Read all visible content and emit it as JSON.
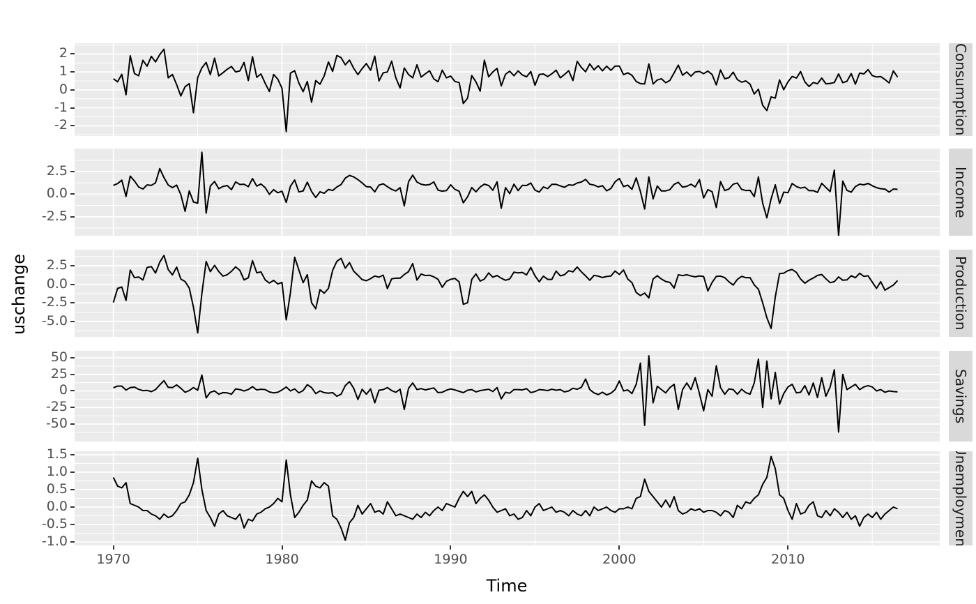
{
  "axis": {
    "x_label": "Time",
    "y_label": "uschange",
    "x_ticks": [
      1970,
      1980,
      1990,
      2000,
      2010
    ],
    "x_tick_labels": [
      "1970",
      "1980",
      "1990",
      "2000",
      "2010"
    ]
  },
  "colors": {
    "panel_background": "#EBEBEB",
    "grid_major": "#FFFFFF",
    "grid_minor": "#FFFFFF",
    "strip_background": "#D9D9D9",
    "strip_text": "#1A1A1A",
    "tick_text": "#4D4D4D",
    "axis_title_text": "#000000",
    "series_line": "#000000",
    "tick_mark": "#333333"
  },
  "chart_data": {
    "type": "line",
    "title": "",
    "xlabel": "Time",
    "ylabel": "uschange",
    "x_start": 1970.0,
    "x_step": 0.25,
    "n_points": 187,
    "xlim": [
      1967.7,
      2019.0
    ],
    "x_major": [
      1970,
      1980,
      1990,
      2000,
      2010
    ],
    "x_minor": [
      1975,
      1985,
      1995,
      2005,
      2015
    ],
    "legend": "none",
    "facets": "rows, free_y, strips on right",
    "panels": [
      {
        "label": "Consumption",
        "ylim": [
          -2.57,
          2.6
        ],
        "yticks": [
          2,
          1,
          0,
          -1,
          -2
        ],
        "ytick_labels": [
          "2",
          "1",
          "0",
          "-1",
          "-2"
        ],
        "yminor": [
          2.5,
          1.5,
          0.5,
          -0.5,
          -1.5,
          -2.5
        ],
        "values": [
          0.62,
          0.45,
          0.87,
          -0.27,
          1.9,
          0.91,
          0.79,
          1.65,
          1.32,
          1.87,
          1.56,
          1.97,
          2.27,
          0.67,
          0.86,
          0.29,
          -0.34,
          0.18,
          0.35,
          -1.27,
          0.69,
          1.23,
          1.53,
          0.85,
          1.77,
          0.78,
          0.96,
          1.15,
          1.3,
          1.0,
          1.06,
          1.53,
          0.52,
          1.85,
          0.7,
          0.89,
          0.37,
          -0.09,
          0.86,
          0.6,
          0.09,
          -2.33,
          0.94,
          1.07,
          0.39,
          -0.1,
          0.47,
          -0.69,
          0.52,
          0.32,
          0.78,
          1.56,
          1.03,
          1.92,
          1.8,
          1.4,
          1.66,
          1.2,
          0.85,
          1.19,
          1.47,
          1.09,
          1.88,
          0.5,
          0.95,
          1.0,
          1.6,
          0.67,
          0.11,
          1.22,
          0.86,
          0.67,
          1.4,
          0.71,
          0.9,
          1.07,
          0.61,
          0.46,
          1.1,
          0.67,
          0.77,
          0.47,
          0.41,
          -0.76,
          -0.46,
          0.8,
          0.45,
          -0.07,
          1.66,
          0.73,
          1.0,
          1.2,
          0.22,
          0.87,
          1.04,
          0.79,
          1.06,
          0.83,
          0.73,
          1.02,
          0.26,
          0.86,
          0.89,
          0.74,
          0.9,
          1.1,
          0.67,
          0.86,
          1.07,
          0.52,
          1.59,
          1.25,
          1.01,
          1.45,
          1.12,
          1.35,
          1.06,
          1.32,
          1.09,
          1.33,
          1.33,
          0.85,
          0.95,
          0.81,
          0.47,
          0.35,
          0.33,
          1.45,
          0.33,
          0.55,
          0.62,
          0.4,
          0.53,
          0.95,
          1.38,
          0.82,
          1.0,
          0.77,
          1.0,
          1.03,
          0.9,
          1.05,
          0.86,
          0.28,
          1.11,
          0.62,
          0.68,
          0.99,
          0.57,
          0.43,
          0.5,
          0.32,
          -0.23,
          0.04,
          -0.86,
          -1.15,
          -0.39,
          -0.46,
          0.56,
          0.01,
          0.45,
          0.75,
          0.66,
          1.02,
          0.45,
          0.19,
          0.41,
          0.34,
          0.66,
          0.34,
          0.36,
          0.41,
          0.89,
          0.4,
          0.48,
          0.91,
          0.32,
          0.94,
          0.89,
          1.13,
          0.8,
          0.72,
          0.74,
          0.58,
          0.39,
          1.06,
          0.71
        ]
      },
      {
        "label": "Income",
        "ylim": [
          -4.6,
          5.04
        ],
        "yticks": [
          2.5,
          0,
          -2.5
        ],
        "ytick_labels": [
          "2.5",
          "0.0",
          "-2.5"
        ],
        "yminor": [
          3.75,
          1.25,
          -1.25,
          -3.75
        ],
        "values": [
          0.97,
          1.17,
          1.55,
          -0.26,
          1.99,
          1.45,
          0.79,
          0.57,
          1.02,
          0.97,
          1.25,
          2.83,
          1.83,
          1.01,
          0.72,
          1.0,
          -0.06,
          -1.9,
          0.36,
          -0.87,
          -1.0,
          4.64,
          -2.1,
          0.9,
          1.4,
          0.6,
          0.85,
          0.95,
          0.5,
          1.35,
          1.07,
          1.1,
          0.82,
          1.72,
          0.89,
          1.12,
          0.72,
          -0.02,
          0.5,
          0.15,
          0.33,
          -0.91,
          0.88,
          1.56,
          0.24,
          0.35,
          1.32,
          0.3,
          -0.37,
          0.26,
          0.1,
          0.52,
          0.4,
          0.79,
          1.06,
          1.77,
          2.07,
          1.9,
          1.61,
          1.24,
          0.83,
          0.79,
          0.25,
          1.0,
          1.15,
          0.82,
          0.53,
          0.35,
          0.72,
          -1.3,
          1.37,
          2.1,
          1.34,
          1.1,
          1.0,
          1.06,
          1.35,
          0.44,
          0.33,
          0.39,
          1.03,
          0.53,
          0.32,
          -0.96,
          -0.3,
          0.73,
          0.26,
          0.79,
          1.11,
          0.96,
          0.43,
          1.36,
          -1.57,
          0.72,
          0.06,
          1.1,
          0.39,
          0.97,
          0.95,
          1.23,
          0.44,
          0.23,
          0.8,
          0.61,
          1.08,
          1.08,
          0.91,
          0.76,
          1.03,
          0.98,
          1.23,
          1.34,
          1.63,
          1.1,
          1.01,
          0.8,
          0.93,
          0.37,
          0.63,
          1.36,
          1.73,
          0.84,
          0.99,
          0.54,
          1.8,
          0.3,
          -1.65,
          1.91,
          -0.53,
          0.9,
          0.35,
          0.36,
          0.5,
          1.08,
          1.31,
          0.77,
          0.87,
          1.1,
          0.8,
          1.61,
          -0.42,
          0.5,
          0.27,
          -1.48,
          1.39,
          0.4,
          0.57,
          1.1,
          1.23,
          0.53,
          0.4,
          0.42,
          -0.27,
          1.9,
          -1.01,
          -2.62,
          -0.51,
          1.03,
          -1.04,
          0.22,
          0.16,
          1.18,
          0.84,
          0.67,
          0.77,
          0.38,
          0.4,
          0.19,
          1.2,
          0.74,
          0.28,
          2.66,
          -4.62,
          1.45,
          0.41,
          0.22,
          0.84,
          1.11,
          1.03,
          1.19,
          0.93,
          0.72,
          0.6,
          0.56,
          0.23,
          0.57,
          0.53
        ]
      },
      {
        "label": "Production",
        "ylim": [
          -7.09,
          4.67
        ],
        "yticks": [
          2.5,
          0,
          -2.5,
          -5
        ],
        "ytick_labels": [
          "2.5",
          "0.0",
          "-2.5",
          "-5.0"
        ],
        "yminor": [
          3.75,
          1.25,
          -1.25,
          -3.75,
          -6.25
        ],
        "values": [
          -2.45,
          -0.55,
          -0.36,
          -2.18,
          1.91,
          0.9,
          0.99,
          0.59,
          2.27,
          2.39,
          1.52,
          3.0,
          3.89,
          1.99,
          1.27,
          2.33,
          0.71,
          0.37,
          -0.51,
          -3.09,
          -6.56,
          -1.22,
          3.08,
          1.71,
          2.55,
          1.73,
          1.1,
          1.29,
          1.75,
          2.36,
          1.87,
          0.6,
          0.89,
          3.19,
          1.56,
          1.68,
          0.6,
          0.17,
          0.53,
          0.05,
          0.25,
          -4.79,
          -1.13,
          3.65,
          1.93,
          0.22,
          1.29,
          -2.47,
          -3.3,
          -0.72,
          -1.2,
          -0.55,
          1.88,
          3.1,
          3.5,
          2.18,
          2.93,
          1.76,
          1.23,
          0.63,
          0.48,
          0.77,
          1.12,
          0.96,
          1.24,
          -0.58,
          0.74,
          0.83,
          0.82,
          1.32,
          1.71,
          2.8,
          0.57,
          1.39,
          1.18,
          1.23,
          1.01,
          0.67,
          -0.4,
          0.41,
          0.67,
          0.79,
          0.33,
          -2.7,
          -2.49,
          0.66,
          1.4,
          0.44,
          0.71,
          1.54,
          0.96,
          1.2,
          0.82,
          0.55,
          0.72,
          1.64,
          1.54,
          1.6,
          1.27,
          2.27,
          1.14,
          0.33,
          1.1,
          0.66,
          0.66,
          1.79,
          1.14,
          1.29,
          1.83,
          1.68,
          2.34,
          1.69,
          1.13,
          0.55,
          1.21,
          1.1,
          0.92,
          1.06,
          1.12,
          1.79,
          1.33,
          1.93,
          0.71,
          0.22,
          -1.1,
          -1.52,
          -1.18,
          -1.84,
          0.72,
          1.16,
          0.71,
          0.38,
          0.26,
          -0.5,
          1.28,
          1.17,
          1.29,
          1.12,
          1.01,
          1.13,
          1.06,
          -0.9,
          0.24,
          1.07,
          1.1,
          0.9,
          0.33,
          -0.1,
          0.66,
          1.08,
          0.9,
          0.9,
          -0.07,
          -0.66,
          -2.5,
          -4.5,
          -5.95,
          -1.7,
          1.45,
          1.5,
          1.85,
          2.0,
          1.6,
          0.71,
          0.15,
          0.55,
          0.85,
          1.2,
          1.32,
          0.75,
          0.22,
          0.35,
          1.0,
          0.55,
          0.6,
          1.16,
          0.89,
          1.49,
          1.08,
          1.15,
          0.3,
          -0.55,
          0.35,
          -0.8,
          -0.45,
          -0.1,
          0.51
        ]
      },
      {
        "label": "Savings",
        "ylim": [
          -76.3,
          60.5
        ],
        "yticks": [
          50,
          25,
          0,
          -25,
          -50
        ],
        "ytick_labels": [
          "50",
          "25",
          "0",
          "-25",
          "-50"
        ],
        "yminor": [
          37.5,
          12.5,
          -12.5,
          -37.5,
          -62.5
        ],
        "values": [
          4.81,
          7.29,
          7.29,
          1.21,
          4.94,
          5.74,
          2.44,
          0.39,
          0.8,
          -1.01,
          1.95,
          9.17,
          15.5,
          5.5,
          5.0,
          9.0,
          4.0,
          -2.0,
          0.5,
          5.0,
          1.0,
          24.0,
          -10.5,
          -2.0,
          0.0,
          -5.0,
          -2.5,
          -3.0,
          -5.0,
          3.0,
          2.0,
          0.0,
          2.0,
          6.5,
          1.5,
          2.5,
          2.0,
          -1.5,
          -3.0,
          -2.0,
          1.5,
          6.0,
          0.0,
          3.0,
          -3.0,
          0.5,
          9.5,
          5.0,
          -4.0,
          0.0,
          -2.5,
          -3.5,
          -2.5,
          -8.0,
          -5.0,
          8.0,
          14.0,
          4.0,
          -13.0,
          2.5,
          -5.0,
          3.0,
          -18.0,
          1.0,
          2.0,
          5.0,
          0.5,
          -2.0,
          2.5,
          -28.0,
          4.0,
          12.0,
          2.0,
          3.5,
          1.5,
          3.0,
          4.5,
          -2.5,
          -2.0,
          1.0,
          3.0,
          1.5,
          -0.5,
          -2.5,
          1.0,
          2.0,
          -1.5,
          0.5,
          1.5,
          2.5,
          -1.0,
          5.0,
          -12.0,
          -2.0,
          -3.5,
          2.0,
          2.0,
          1.5,
          3.5,
          -2.5,
          -1.0,
          2.0,
          1.5,
          0.5,
          2.5,
          1.0,
          2.0,
          -1.5,
          0.0,
          4.0,
          2.5,
          5.5,
          18.0,
          2.0,
          -3.0,
          -5.5,
          -2.0,
          -6.0,
          -3.5,
          2.0,
          15.0,
          0.0,
          1.5,
          -4.0,
          10.0,
          42.0,
          -52.0,
          53.0,
          -18.0,
          7.0,
          2.0,
          -3.0,
          5.0,
          10.0,
          -28.0,
          2.0,
          12.0,
          2.0,
          20.0,
          -4.0,
          -30.0,
          2.0,
          -8.0,
          38.0,
          5.0,
          -5.0,
          3.0,
          2.0,
          -5.0,
          2.5,
          -2.5,
          -5.0,
          12.0,
          48.0,
          -25.0,
          45.0,
          -12.0,
          28.0,
          -20.0,
          -4.0,
          6.0,
          10.0,
          -3.0,
          -2.0,
          8.0,
          -6.0,
          12.0,
          -10.0,
          20.0,
          -8.0,
          6.0,
          32.0,
          -62.0,
          25.0,
          2.0,
          6.0,
          10.0,
          2.0,
          6.0,
          8.0,
          6.0,
          0.0,
          2.0,
          -2.0,
          0.0,
          -1.0,
          -1.5
        ]
      },
      {
        "label": "Unemployment",
        "ylim": [
          -1.1,
          1.6
        ],
        "yticks": [
          1.5,
          1.0,
          0.5,
          0.0,
          -0.5,
          -1.0
        ],
        "ytick_labels": [
          "1.5",
          "1.0",
          "0.5",
          "0.0",
          "-0.5",
          "-1.0"
        ],
        "yminor": [
          1.25,
          0.75,
          0.25,
          -0.25,
          -0.75
        ],
        "values": [
          0.85,
          0.6,
          0.55,
          0.7,
          0.1,
          0.05,
          0.0,
          -0.1,
          -0.1,
          -0.2,
          -0.25,
          -0.35,
          -0.2,
          -0.3,
          -0.25,
          -0.1,
          0.1,
          0.15,
          0.35,
          0.7,
          1.4,
          0.5,
          -0.1,
          -0.3,
          -0.55,
          -0.2,
          -0.1,
          -0.25,
          -0.3,
          -0.35,
          -0.2,
          -0.6,
          -0.35,
          -0.4,
          -0.2,
          -0.15,
          -0.05,
          0.0,
          0.1,
          0.25,
          0.15,
          1.35,
          0.35,
          -0.3,
          -0.15,
          0.05,
          0.2,
          0.75,
          0.6,
          0.55,
          0.7,
          0.6,
          -0.25,
          -0.35,
          -0.6,
          -0.95,
          -0.45,
          -0.3,
          0.05,
          -0.2,
          -0.05,
          0.1,
          -0.15,
          -0.1,
          -0.2,
          0.15,
          -0.05,
          -0.25,
          -0.2,
          -0.25,
          -0.3,
          -0.35,
          -0.2,
          -0.3,
          -0.15,
          -0.25,
          -0.1,
          0.0,
          -0.1,
          0.1,
          0.05,
          0.0,
          0.25,
          0.45,
          0.3,
          0.45,
          0.1,
          0.25,
          0.35,
          0.2,
          0.0,
          -0.15,
          -0.1,
          -0.05,
          -0.25,
          -0.2,
          -0.35,
          -0.3,
          -0.1,
          -0.25,
          0.0,
          0.1,
          -0.1,
          -0.05,
          0.0,
          -0.15,
          -0.1,
          -0.15,
          -0.25,
          -0.1,
          -0.2,
          -0.25,
          -0.1,
          -0.25,
          0.0,
          -0.1,
          -0.05,
          0.0,
          -0.1,
          -0.15,
          -0.05,
          -0.05,
          0.0,
          -0.05,
          0.25,
          0.3,
          0.8,
          0.45,
          0.3,
          0.15,
          0.0,
          0.2,
          0.0,
          0.3,
          -0.1,
          -0.2,
          -0.15,
          -0.05,
          -0.1,
          -0.05,
          -0.15,
          -0.1,
          -0.1,
          -0.15,
          -0.25,
          -0.1,
          -0.15,
          -0.3,
          0.05,
          -0.05,
          0.15,
          0.1,
          0.25,
          0.35,
          0.65,
          0.85,
          1.45,
          1.1,
          0.35,
          0.25,
          -0.1,
          -0.35,
          0.1,
          -0.2,
          -0.15,
          0.05,
          0.15,
          -0.25,
          -0.3,
          -0.1,
          -0.25,
          -0.05,
          -0.15,
          -0.3,
          -0.15,
          -0.35,
          -0.25,
          -0.55,
          -0.3,
          -0.2,
          -0.3,
          -0.15,
          -0.35,
          -0.2,
          -0.1,
          0.0,
          -0.05
        ]
      }
    ]
  }
}
